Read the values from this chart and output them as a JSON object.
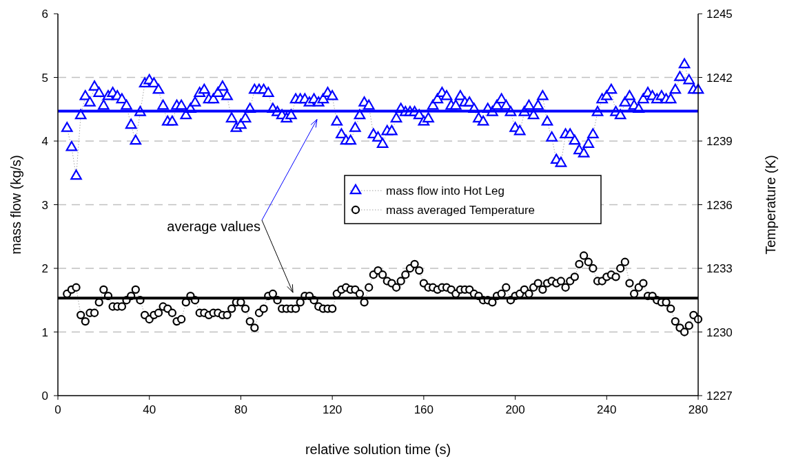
{
  "chart_data": {
    "type": "line",
    "xlabel": "relative solution time (s)",
    "ylabel": "mass flow (kg/s)",
    "y2label": "Temperature (K)",
    "xlim": [
      0,
      280
    ],
    "xticks": [
      0,
      40,
      80,
      120,
      160,
      200,
      240,
      280
    ],
    "ylim": [
      0,
      6
    ],
    "yticks": [
      0,
      1,
      2,
      3,
      4,
      5,
      6
    ],
    "y2lim": [
      1227,
      1245
    ],
    "y2ticks": [
      1227,
      1230,
      1233,
      1236,
      1239,
      1242,
      1245
    ],
    "grid": "y",
    "legend": "right",
    "line_style": "dotted",
    "annotations": [
      "average values"
    ],
    "ref_lines": [
      {
        "axis": "y",
        "value": 4.47,
        "color": "#0000ff"
      },
      {
        "axis": "y2",
        "value": 1231.6,
        "color": "#000000"
      }
    ],
    "x": [
      4,
      6,
      8,
      10,
      12,
      14,
      16,
      18,
      20,
      22,
      24,
      26,
      28,
      30,
      32,
      34,
      36,
      38,
      40,
      42,
      44,
      46,
      48,
      50,
      52,
      54,
      56,
      58,
      60,
      62,
      64,
      66,
      68,
      70,
      72,
      74,
      76,
      78,
      80,
      82,
      84,
      86,
      88,
      90,
      92,
      94,
      96,
      98,
      100,
      102,
      104,
      106,
      108,
      110,
      112,
      114,
      116,
      118,
      120,
      122,
      124,
      126,
      128,
      130,
      132,
      134,
      136,
      138,
      140,
      142,
      144,
      146,
      148,
      150,
      152,
      154,
      156,
      158,
      160,
      162,
      164,
      166,
      168,
      170,
      172,
      174,
      176,
      178,
      180,
      182,
      184,
      186,
      188,
      190,
      192,
      194,
      196,
      198,
      200,
      202,
      204,
      206,
      208,
      210,
      212,
      214,
      216,
      218,
      220,
      222,
      224,
      226,
      228,
      230,
      232,
      234,
      236,
      238,
      240,
      242,
      244,
      246,
      248,
      250,
      252,
      254,
      256,
      258,
      260,
      262,
      264,
      266,
      268,
      270,
      272,
      274,
      276,
      278,
      280
    ],
    "series": [
      {
        "name": "mass flow into Hot Leg",
        "color": "#0000ff",
        "marker": "triangle",
        "values": [
          4.2,
          3.9,
          3.45,
          4.4,
          4.7,
          4.6,
          4.85,
          4.75,
          4.55,
          4.7,
          4.75,
          4.7,
          4.65,
          4.55,
          4.25,
          4.0,
          4.45,
          4.9,
          4.95,
          4.9,
          4.8,
          4.55,
          4.3,
          4.3,
          4.55,
          4.55,
          4.4,
          4.5,
          4.6,
          4.75,
          4.8,
          4.65,
          4.65,
          4.75,
          4.85,
          4.7,
          4.35,
          4.2,
          4.25,
          4.35,
          4.5,
          4.8,
          4.8,
          4.8,
          4.75,
          4.5,
          4.45,
          4.4,
          4.35,
          4.4,
          4.65,
          4.65,
          4.65,
          4.6,
          4.65,
          4.6,
          4.65,
          4.75,
          4.7,
          4.3,
          4.1,
          4.0,
          4.0,
          4.2,
          4.4,
          4.6,
          4.55,
          4.1,
          4.05,
          3.95,
          4.15,
          4.15,
          4.35,
          4.5,
          4.45,
          4.45,
          4.45,
          4.4,
          4.3,
          4.35,
          4.55,
          4.65,
          4.75,
          4.7,
          4.55,
          4.55,
          4.7,
          4.6,
          4.6,
          4.5,
          4.35,
          4.3,
          4.5,
          4.45,
          4.55,
          4.65,
          4.55,
          4.45,
          4.2,
          4.15,
          4.45,
          4.55,
          4.4,
          4.55,
          4.7,
          4.3,
          4.05,
          3.7,
          3.65,
          4.1,
          4.1,
          4.0,
          3.85,
          3.8,
          3.95,
          4.1,
          4.45,
          4.65,
          4.7,
          4.8,
          4.45,
          4.4,
          4.6,
          4.7,
          4.55,
          4.5,
          4.65,
          4.75,
          4.7,
          4.65,
          4.7,
          4.65,
          4.65,
          4.8,
          5.0,
          5.2,
          4.95,
          4.8,
          4.8
        ]
      },
      {
        "name": "mass averaged Temperature",
        "color": "#000000",
        "marker": "circle",
        "axis": "y2",
        "values": [
          1231.8,
          1232.0,
          1232.1,
          1230.8,
          1230.5,
          1230.9,
          1230.9,
          1231.4,
          1232.0,
          1231.7,
          1231.2,
          1231.2,
          1231.2,
          1231.5,
          1231.7,
          1232.0,
          1231.5,
          1230.8,
          1230.6,
          1230.8,
          1230.9,
          1231.2,
          1231.1,
          1230.9,
          1230.5,
          1230.6,
          1231.4,
          1231.7,
          1231.5,
          1230.9,
          1230.9,
          1230.8,
          1230.9,
          1230.9,
          1230.8,
          1230.8,
          1231.1,
          1231.4,
          1231.4,
          1231.1,
          1230.5,
          1230.2,
          1230.9,
          1231.1,
          1231.7,
          1231.8,
          1231.5,
          1231.1,
          1231.1,
          1231.1,
          1231.1,
          1231.4,
          1231.7,
          1231.7,
          1231.5,
          1231.2,
          1231.1,
          1231.1,
          1231.1,
          1231.8,
          1232.0,
          1232.1,
          1232.0,
          1232.0,
          1231.8,
          1231.4,
          1232.1,
          1232.7,
          1232.9,
          1232.7,
          1232.4,
          1232.3,
          1232.1,
          1232.4,
          1232.7,
          1233.0,
          1233.2,
          1232.9,
          1232.3,
          1232.1,
          1232.1,
          1232.0,
          1232.1,
          1232.1,
          1232.0,
          1231.8,
          1232.0,
          1232.0,
          1232.0,
          1231.8,
          1231.7,
          1231.5,
          1231.5,
          1231.4,
          1231.7,
          1231.8,
          1232.1,
          1231.5,
          1231.7,
          1231.8,
          1232.0,
          1231.8,
          1232.1,
          1232.3,
          1232.0,
          1232.3,
          1232.4,
          1232.3,
          1232.4,
          1232.1,
          1232.4,
          1232.6,
          1233.2,
          1233.6,
          1233.3,
          1233.0,
          1232.4,
          1232.4,
          1232.6,
          1232.7,
          1232.6,
          1233.0,
          1233.3,
          1232.3,
          1231.8,
          1232.1,
          1232.3,
          1231.7,
          1231.7,
          1231.5,
          1231.4,
          1231.4,
          1231.1,
          1230.5,
          1230.2,
          1230.0,
          1230.3,
          1230.8,
          1230.6
        ]
      }
    ]
  }
}
